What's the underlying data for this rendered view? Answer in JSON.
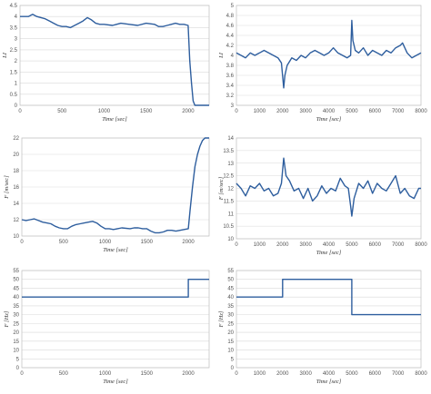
{
  "chart_data": [
    {
      "type": "line",
      "panel": "top-left",
      "xlabel": "Time [sec]",
      "ylabel": "LI",
      "xlim": [
        0,
        2250
      ],
      "ylim": [
        0,
        4.5
      ],
      "xticks": [
        "0",
        "500",
        "1000",
        "1500",
        "2000"
      ],
      "yticks": [
        "0",
        "0.5",
        "1",
        "1.5",
        "2",
        "2.5",
        "3",
        "3.5",
        "4",
        "4.5"
      ],
      "color": "#2e5e9e",
      "grid": true,
      "series": [
        {
          "x": [
            0,
            50,
            100,
            150,
            200,
            250,
            300,
            350,
            400,
            450,
            500,
            550,
            600,
            650,
            700,
            750,
            800,
            850,
            900,
            950,
            1000,
            1100,
            1200,
            1300,
            1400,
            1500,
            1600,
            1650,
            1700,
            1750,
            1800,
            1850,
            1900,
            1950,
            2000,
            2020,
            2040,
            2060,
            2080,
            2100,
            2150,
            2200,
            2250
          ],
          "y": [
            4.0,
            4.0,
            4.0,
            4.1,
            4.0,
            3.95,
            3.9,
            3.8,
            3.7,
            3.6,
            3.55,
            3.55,
            3.5,
            3.6,
            3.7,
            3.8,
            3.95,
            3.85,
            3.7,
            3.65,
            3.65,
            3.6,
            3.7,
            3.65,
            3.6,
            3.7,
            3.65,
            3.55,
            3.55,
            3.6,
            3.65,
            3.7,
            3.65,
            3.65,
            3.6,
            2.0,
            1.0,
            0.2,
            0.0,
            0.0,
            0.0,
            0.0,
            0.0
          ]
        }
      ]
    },
    {
      "type": "line",
      "panel": "top-right",
      "xlabel": "Time [sec]",
      "ylabel": "LI",
      "xlim": [
        0,
        8000
      ],
      "ylim": [
        3,
        5
      ],
      "xticks": [
        "0",
        "1000",
        "2000",
        "3000",
        "4000",
        "5000",
        "6000",
        "7000",
        "8000"
      ],
      "yticks": [
        "3",
        "3.2",
        "3.4",
        "3.6",
        "3.8",
        "4",
        "4.2",
        "4.4",
        "4.6",
        "4.8",
        "5"
      ],
      "color": "#2e5e9e",
      "grid": true,
      "series": [
        {
          "x": [
            0,
            200,
            400,
            600,
            800,
            1000,
            1200,
            1400,
            1600,
            1800,
            1950,
            2050,
            2100,
            2200,
            2400,
            2600,
            2800,
            3000,
            3200,
            3400,
            3600,
            3800,
            4000,
            4200,
            4400,
            4600,
            4800,
            4950,
            5000,
            5050,
            5150,
            5300,
            5500,
            5700,
            5900,
            6100,
            6300,
            6500,
            6700,
            6900,
            7100,
            7200,
            7400,
            7600,
            7800,
            8000
          ],
          "y": [
            4.05,
            4.0,
            3.95,
            4.05,
            4.0,
            4.05,
            4.1,
            4.05,
            4.0,
            3.95,
            3.85,
            3.35,
            3.6,
            3.8,
            3.95,
            3.9,
            4.0,
            3.95,
            4.05,
            4.1,
            4.05,
            4.0,
            4.05,
            4.15,
            4.05,
            4.0,
            3.95,
            4.0,
            4.7,
            4.3,
            4.1,
            4.05,
            4.15,
            4.0,
            4.1,
            4.05,
            4.0,
            4.1,
            4.05,
            4.15,
            4.2,
            4.25,
            4.05,
            3.95,
            4.0,
            4.05
          ]
        }
      ]
    },
    {
      "type": "line",
      "panel": "middle-left",
      "xlabel": "Time [sec]",
      "ylabel": "F [m/sec]",
      "xlim": [
        0,
        2250
      ],
      "ylim": [
        10,
        22
      ],
      "xticks": [
        "0",
        "500",
        "1000",
        "1500",
        "2000"
      ],
      "yticks": [
        "10",
        "12",
        "14",
        "16",
        "18",
        "20",
        "22"
      ],
      "color": "#2e5e9e",
      "grid": true,
      "series": [
        {
          "x": [
            0,
            50,
            100,
            150,
            200,
            250,
            300,
            350,
            400,
            450,
            500,
            550,
            600,
            650,
            700,
            750,
            800,
            850,
            900,
            950,
            1000,
            1050,
            1100,
            1200,
            1300,
            1350,
            1400,
            1450,
            1500,
            1550,
            1600,
            1650,
            1700,
            1750,
            1800,
            1850,
            1900,
            1950,
            2000,
            2020,
            2050,
            2080,
            2110,
            2140,
            2170,
            2200,
            2250
          ],
          "y": [
            12.0,
            11.9,
            12.0,
            12.1,
            11.9,
            11.7,
            11.6,
            11.5,
            11.2,
            11.0,
            10.9,
            10.9,
            11.2,
            11.4,
            11.5,
            11.6,
            11.7,
            11.8,
            11.6,
            11.2,
            10.9,
            10.9,
            10.8,
            11.0,
            10.9,
            11.0,
            11.0,
            10.9,
            10.9,
            10.6,
            10.4,
            10.4,
            10.5,
            10.7,
            10.7,
            10.6,
            10.7,
            10.8,
            10.9,
            13.0,
            16.0,
            18.5,
            20.0,
            21.0,
            21.7,
            22.0,
            22.0
          ]
        }
      ]
    },
    {
      "type": "line",
      "panel": "middle-right",
      "xlabel": "Time [sec]",
      "ylabel": "F [m/sec]",
      "xlim": [
        0,
        8000
      ],
      "ylim": [
        10,
        14
      ],
      "xticks": [
        "0",
        "1000",
        "2000",
        "3000",
        "4000",
        "5000",
        "6000",
        "7000",
        "8000"
      ],
      "yticks": [
        "10",
        "10.5",
        "11",
        "11.5",
        "12",
        "12.5",
        "13",
        "13.5",
        "14"
      ],
      "color": "#2e5e9e",
      "grid": true,
      "series": [
        {
          "x": [
            0,
            200,
            400,
            600,
            800,
            1000,
            1200,
            1400,
            1600,
            1800,
            1950,
            2050,
            2150,
            2300,
            2500,
            2700,
            2900,
            3100,
            3300,
            3500,
            3700,
            3900,
            4100,
            4300,
            4500,
            4700,
            4850,
            4950,
            5000,
            5100,
            5300,
            5500,
            5700,
            5900,
            6100,
            6300,
            6500,
            6700,
            6900,
            7100,
            7300,
            7500,
            7700,
            7900,
            8000
          ],
          "y": [
            12.2,
            12.0,
            11.7,
            12.1,
            12.0,
            12.2,
            11.9,
            12.0,
            11.7,
            11.8,
            12.2,
            13.2,
            12.5,
            12.3,
            11.9,
            12.0,
            11.6,
            12.0,
            11.5,
            11.7,
            12.1,
            11.8,
            12.0,
            11.9,
            12.4,
            12.1,
            12.0,
            11.3,
            10.9,
            11.6,
            12.2,
            12.0,
            12.3,
            11.8,
            12.2,
            12.0,
            11.9,
            12.2,
            12.5,
            11.8,
            12.0,
            11.7,
            11.6,
            12.0,
            12.0
          ]
        }
      ]
    },
    {
      "type": "line",
      "panel": "bottom-left",
      "xlabel": "Time [sec]",
      "ylabel": "F [Hz]",
      "xlim": [
        0,
        2250
      ],
      "ylim": [
        0,
        55
      ],
      "xticks": [
        "0",
        "500",
        "1000",
        "1500",
        "2000"
      ],
      "yticks": [
        "0",
        "5",
        "10",
        "15",
        "20",
        "25",
        "30",
        "35",
        "40",
        "45",
        "50",
        "55"
      ],
      "color": "#2e5e9e",
      "grid": true,
      "series": [
        {
          "x": [
            0,
            2000,
            2000,
            2250
          ],
          "y": [
            40,
            40,
            50,
            50
          ]
        }
      ]
    },
    {
      "type": "line",
      "panel": "bottom-right",
      "xlabel": "Time [sec]",
      "ylabel": "F [Hz]",
      "xlim": [
        0,
        8000
      ],
      "ylim": [
        0,
        55
      ],
      "xticks": [
        "0",
        "1000",
        "2000",
        "3000",
        "4000",
        "5000",
        "6000",
        "7000",
        "8000"
      ],
      "yticks": [
        "0",
        "5",
        "10",
        "15",
        "20",
        "25",
        "30",
        "35",
        "40",
        "45",
        "50",
        "55"
      ],
      "color": "#2e5e9e",
      "grid": true,
      "series": [
        {
          "x": [
            0,
            2000,
            2000,
            5000,
            5000,
            8000
          ],
          "y": [
            40,
            40,
            50,
            50,
            30,
            30
          ]
        }
      ]
    }
  ]
}
